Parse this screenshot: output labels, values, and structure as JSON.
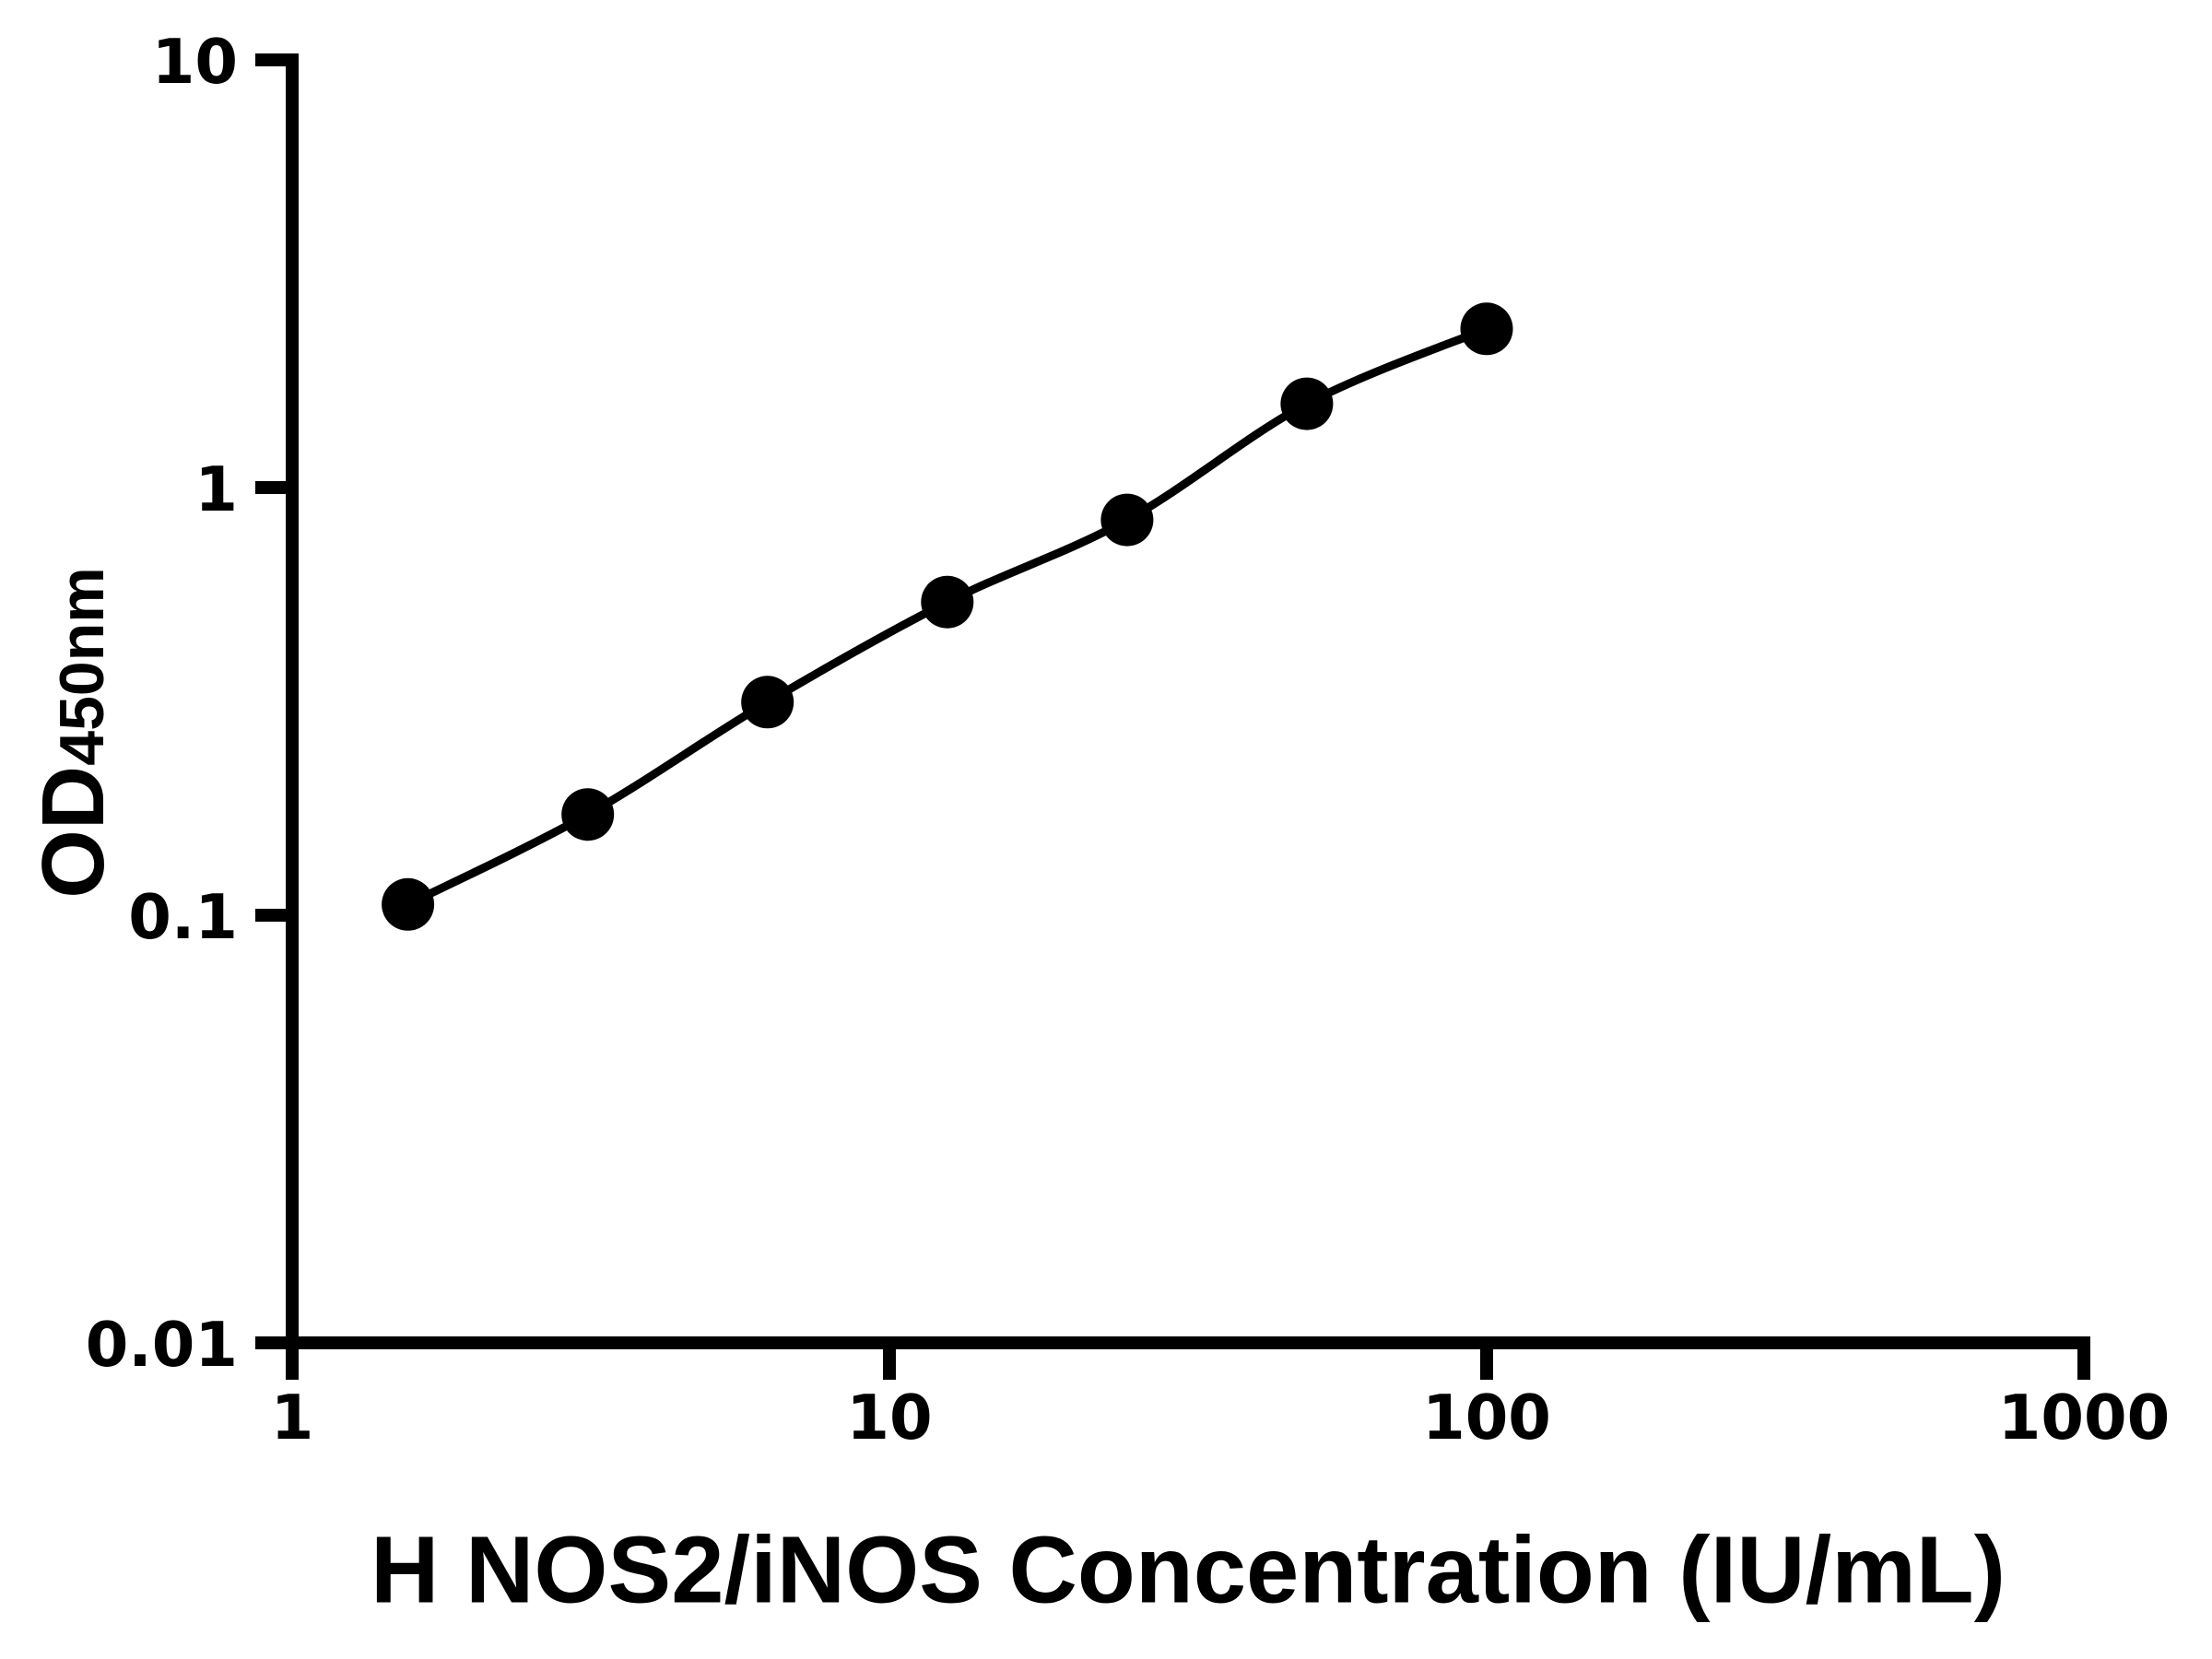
{
  "colors": {
    "ink": "#000000",
    "background": "#ffffff"
  },
  "chart_data": {
    "type": "scatter",
    "subtype": "log-log standard curve with fitted line",
    "title": "",
    "xlabel": "H NOS2/iNOS Concentration (IU/mL)",
    "ylabel_main": "OD",
    "ylabel_sub": "450nm",
    "x_scale": "log10",
    "y_scale": "log10",
    "xlim": [
      1,
      1000
    ],
    "ylim": [
      0.01,
      10
    ],
    "grid": false,
    "legend": false,
    "x_ticks": [
      {
        "value": 1,
        "label": "1"
      },
      {
        "value": 10,
        "label": "10"
      },
      {
        "value": 100,
        "label": "100"
      },
      {
        "value": 1000,
        "label": "1000"
      }
    ],
    "y_ticks": [
      {
        "value": 10,
        "label": "10"
      },
      {
        "value": 1,
        "label": "1"
      },
      {
        "value": 0.1,
        "label": "0.1"
      },
      {
        "value": 0.01,
        "label": "0.01"
      }
    ],
    "series": [
      {
        "name": "standard-curve",
        "marker": "filled-circle",
        "color": "#000000",
        "points": [
          {
            "x": 1.5625,
            "y": 0.106
          },
          {
            "x": 3.125,
            "y": 0.172
          },
          {
            "x": 6.25,
            "y": 0.315
          },
          {
            "x": 12.5,
            "y": 0.54
          },
          {
            "x": 25,
            "y": 0.84
          },
          {
            "x": 50,
            "y": 1.57
          },
          {
            "x": 100,
            "y": 2.35
          }
        ]
      }
    ]
  }
}
